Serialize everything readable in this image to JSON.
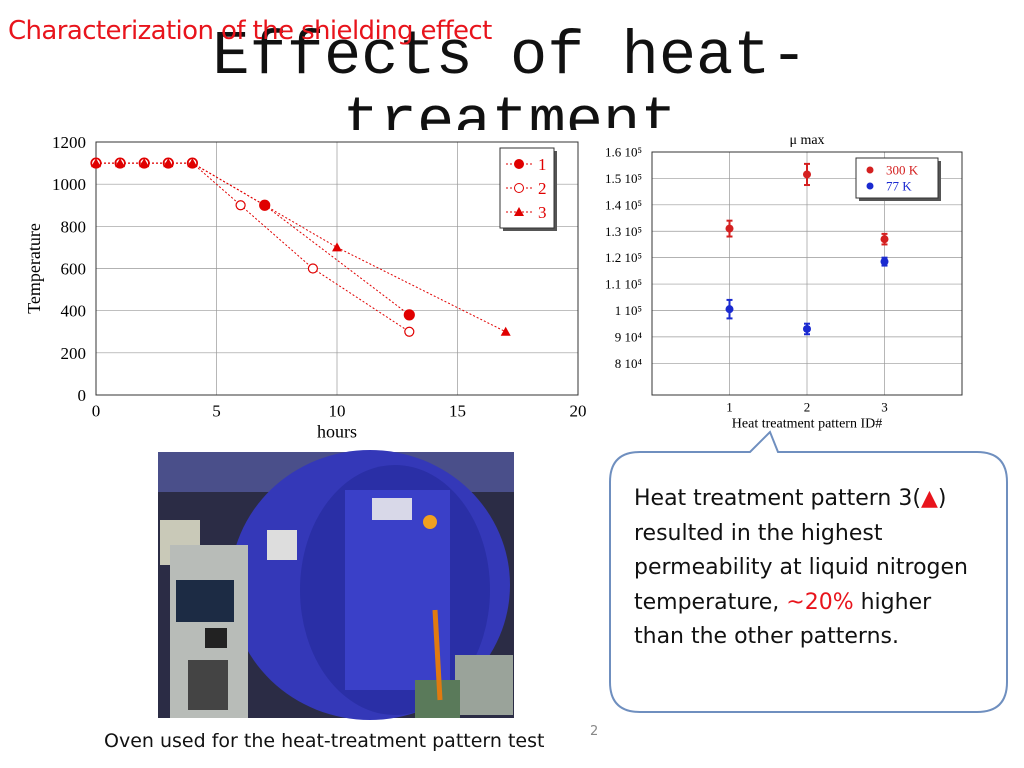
{
  "header": {
    "section": "Characterization of the shielding effect",
    "title": "Effects of heat-treatment"
  },
  "chart_data": [
    {
      "type": "line",
      "xlabel": "hours",
      "ylabel": "Temperature",
      "xlim": [
        0,
        20
      ],
      "xticks": [
        0,
        5,
        10,
        15,
        20
      ],
      "ylim": [
        0,
        1200
      ],
      "yticks": [
        0,
        200,
        400,
        600,
        800,
        1000,
        1200
      ],
      "grid": true,
      "legend": "upper right",
      "series": [
        {
          "name": "1",
          "color": "#e00000",
          "marker": "circle",
          "x": [
            0,
            1,
            2,
            3,
            4,
            7,
            13
          ],
          "values": [
            1100,
            1100,
            1100,
            1100,
            1100,
            900,
            380
          ]
        },
        {
          "name": "2",
          "color": "#e00000",
          "marker": "open-circle",
          "x": [
            0,
            1,
            2,
            3,
            4,
            6,
            9,
            13
          ],
          "values": [
            1100,
            1100,
            1100,
            1100,
            1100,
            900,
            600,
            300
          ]
        },
        {
          "name": "3",
          "color": "#e00000",
          "marker": "triangle",
          "x": [
            0,
            1,
            2,
            3,
            4,
            10,
            17
          ],
          "values": [
            1100,
            1100,
            1100,
            1100,
            1100,
            700,
            300
          ]
        }
      ]
    },
    {
      "type": "scatter",
      "title": "μ max",
      "xlabel": "Heat treatment pattern ID#",
      "xlim": [
        0,
        4
      ],
      "xticks": [
        1,
        2,
        3
      ],
      "ylim": [
        68000,
        160000
      ],
      "yticks": [
        {
          "value": 80000,
          "label": "8 10⁴"
        },
        {
          "value": 90000,
          "label": "9 10⁴"
        },
        {
          "value": 100000,
          "label": "1 10⁵"
        },
        {
          "value": 110000,
          "label": "1.1 10⁵"
        },
        {
          "value": 120000,
          "label": "1.2 10⁵"
        },
        {
          "value": 130000,
          "label": "1.3 10⁵"
        },
        {
          "value": 140000,
          "label": "1.4 10⁵"
        },
        {
          "value": 150000,
          "label": "1.5 10⁵"
        },
        {
          "value": 160000,
          "label": "1.6 10⁵"
        }
      ],
      "grid": true,
      "legend": "upper right",
      "series": [
        {
          "name": "300 K",
          "color": "#d42020",
          "x": [
            1,
            2,
            3
          ],
          "values": [
            131000,
            151500,
            127000
          ],
          "errors": [
            3000,
            4000,
            2000
          ]
        },
        {
          "name": "77 K",
          "color": "#1a2ad0",
          "x": [
            1,
            2,
            3
          ],
          "values": [
            100500,
            93000,
            118500
          ],
          "errors": [
            3500,
            2000,
            1500
          ]
        }
      ]
    }
  ],
  "photo": {
    "caption": "Oven used for the heat-treatment pattern test"
  },
  "page_number": "2",
  "callout": {
    "text_1": "Heat treatment pattern 3(",
    "symbol": "▲",
    "text_2": ")",
    "text_3": "resulted in the highest permeability at liquid nitrogen temperature, ",
    "highlight": "~20%",
    "text_4": " higher than the other patterns."
  }
}
